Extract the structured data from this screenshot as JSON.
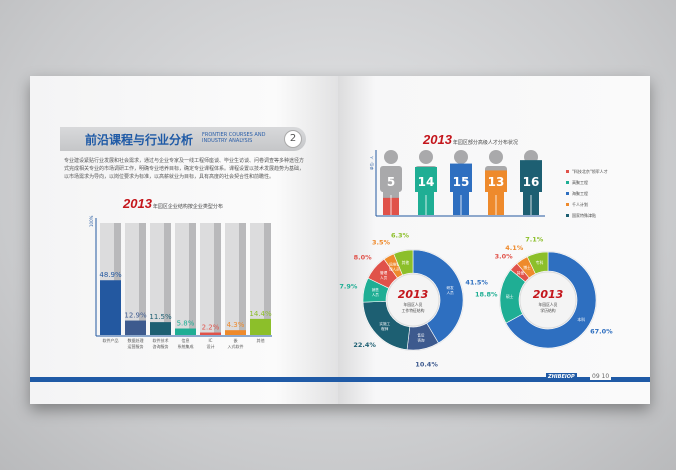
{
  "left_page": {
    "section_title": "前沿课程与行业分析",
    "section_subtitle": "FRONTIER COURSES AND INDUSTRY ANALYSIS",
    "section_number": "2",
    "body_text": "专业建设紧贴行业发展和社会需求，通过与企业专家及一线工程师座谈、毕业生访谈、问卷调查等多种途径方式完成相关专业的市场调研工作，明确专业培养目标，确定专业课程体系。课程设置以技术发展趋势为基础，以市场需求为导向，以岗位要求为标准，以高薪就业为目标，具有高度的社会契合性和前瞻性。"
  },
  "right_page": {
    "footer_logo": "ZHIBEIOP",
    "page_numbers": "09 10"
  },
  "chart_data": [
    {
      "type": "bar",
      "title_year": "2013",
      "title": "年园区企业结构按企业类型分布",
      "ylabel": "100%",
      "ylim": [
        0,
        100
      ],
      "categories": [
        "软件产品",
        "数据处理运营服务",
        "软件技术咨询服务",
        "信息系统集成",
        "IC设计",
        "嵌入式软件",
        "其他"
      ],
      "values": [
        48.9,
        12.9,
        11.5,
        5.8,
        2.2,
        4.3,
        14.4
      ],
      "labels": [
        "48.9%",
        "12.9%",
        "11.5%",
        "5.8%",
        "2.2%",
        "4.3%",
        "14.4%"
      ],
      "colors": [
        "#2358a0",
        "#3d5a8e",
        "#1d5f72",
        "#1fae94",
        "#e0524a",
        "#ee8a2c",
        "#8cbf2a"
      ]
    },
    {
      "type": "bar",
      "title_year": "2013",
      "title": "年园区部分高级人才分布状况",
      "ylabel": "单位：人",
      "categories": [
        "\"科技北京\"领军人才",
        "高聚工程",
        "海聚工程",
        "千人计划",
        "国家特殊津贴"
      ],
      "values": [
        5,
        14,
        15,
        13,
        16
      ],
      "colors": [
        "#e0524a",
        "#1fae94",
        "#2e6fc0",
        "#ee8a2c",
        "#1d5f72"
      ]
    },
    {
      "type": "pie",
      "title_year": "2013",
      "title": "年园区人员工作特征结构",
      "categories": [
        "研发人员",
        "售后咨询",
        "实施工程师",
        "销售人员",
        "管理人员",
        "运维管理人员",
        "其他"
      ],
      "values": [
        41.5,
        10.4,
        22.4,
        7.9,
        8.0,
        3.5,
        6.3
      ],
      "labels": [
        "41.5%",
        "10.4%",
        "22.4%",
        "7.9%",
        "8.0%",
        "3.5%",
        "6.3%"
      ],
      "colors": [
        "#2e6fc0",
        "#3d5a8e",
        "#1d5f72",
        "#1fae94",
        "#e0524a",
        "#ee8a2c",
        "#8cbf2a"
      ]
    },
    {
      "type": "pie",
      "title_year": "2013",
      "title": "年园区人员学历结构",
      "categories": [
        "本科",
        "硕士",
        "其他",
        "博士",
        "专科"
      ],
      "values": [
        67.0,
        18.8,
        3.0,
        4.1,
        7.1
      ],
      "labels": [
        "67.0%",
        "18.8%",
        "3.0%",
        "4.1%",
        "7.1%"
      ],
      "colors": [
        "#2e6fc0",
        "#1fae94",
        "#e0524a",
        "#ee8a2c",
        "#8cbf2a"
      ]
    }
  ]
}
